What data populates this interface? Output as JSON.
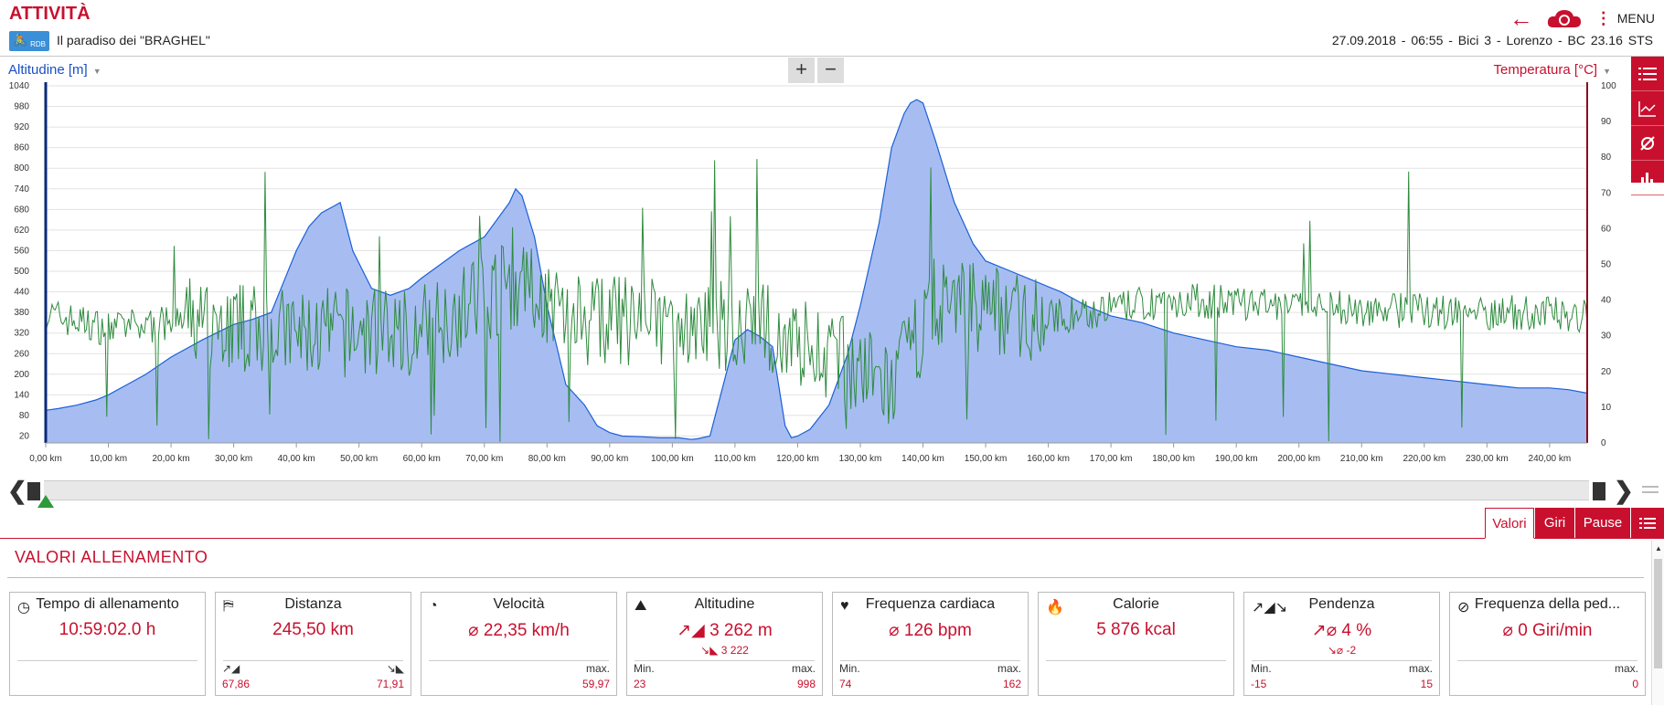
{
  "header": {
    "title": "ATTIVITÀ",
    "logo_text": "RDB",
    "subtitle": "Il paradiso dei \"BRAGHEL\"",
    "menu_label": "MENU",
    "meta": "27.09.2018 - 06:55 - Bici 3 - Lorenzo - BC 23.16 STS"
  },
  "chart_controls": {
    "left_axis_label": "Altitudine [m]",
    "right_axis_label": "Temperatura [°C]",
    "zoom_in": "+",
    "zoom_out": "−"
  },
  "chart_data": {
    "type": "area",
    "x_unit": "km",
    "xlim": [
      0,
      246
    ],
    "x_ticks": [
      "0,00 km",
      "10,00 km",
      "20,00 km",
      "30,00 km",
      "40,00 km",
      "50,00 km",
      "60,00 km",
      "70,00 km",
      "80,00 km",
      "90,00 km",
      "100,00 km",
      "110,00 km",
      "120,00 km",
      "130,00 km",
      "140,00 km",
      "150,00 km",
      "160,00 km",
      "170,00 km",
      "180,00 km",
      "190,00 km",
      "200,00 km",
      "210,00 km",
      "220,00 km",
      "230,00 km",
      "240,00 km"
    ],
    "y_left": {
      "label": "Altitudine [m]",
      "ylim": [
        0,
        1040
      ],
      "ticks": [
        1040,
        980,
        920,
        860,
        800,
        740,
        680,
        620,
        560,
        500,
        440,
        380,
        320,
        260,
        200,
        140,
        80,
        20
      ]
    },
    "y_right": {
      "label": "Temperatura [°C]",
      "ylim": [
        0,
        100
      ],
      "ticks": [
        100,
        90,
        80,
        70,
        60,
        50,
        40,
        30,
        20,
        10,
        0
      ]
    },
    "series": [
      {
        "name": "Altitudine [m]",
        "color": "#1b5fd8",
        "fill": "#a7bdf2",
        "x": [
          0,
          2,
          5,
          8,
          10,
          13,
          16,
          20,
          25,
          30,
          33,
          36,
          38,
          40,
          42,
          44,
          46,
          47,
          49,
          52,
          55,
          58,
          60,
          63,
          66,
          70,
          72,
          74,
          75,
          76,
          78,
          80,
          83,
          86,
          88,
          90,
          92,
          95,
          98,
          101,
          103,
          104,
          106,
          108,
          110,
          112,
          114,
          116,
          118,
          119,
          120,
          122,
          125,
          128,
          130,
          133,
          135,
          137,
          138,
          139,
          140,
          142,
          145,
          148,
          150,
          154,
          158,
          162,
          166,
          170,
          175,
          180,
          185,
          190,
          195,
          200,
          205,
          210,
          215,
          220,
          225,
          230,
          235,
          240,
          243,
          246
        ],
        "y": [
          95,
          100,
          110,
          125,
          140,
          170,
          200,
          250,
          300,
          345,
          360,
          380,
          470,
          560,
          630,
          670,
          690,
          700,
          560,
          450,
          430,
          450,
          480,
          520,
          560,
          600,
          650,
          700,
          740,
          720,
          600,
          400,
          170,
          110,
          50,
          30,
          20,
          18,
          15,
          15,
          10,
          12,
          20,
          160,
          300,
          330,
          310,
          280,
          50,
          15,
          20,
          40,
          110,
          260,
          400,
          640,
          860,
          960,
          990,
          1000,
          990,
          880,
          700,
          580,
          530,
          500,
          470,
          440,
          400,
          370,
          350,
          320,
          300,
          280,
          270,
          250,
          230,
          210,
          200,
          190,
          180,
          170,
          160,
          160,
          155,
          145
        ]
      },
      {
        "name": "Temperatura [°C]",
        "color": "#2e8b3e"
      }
    ]
  },
  "scrollbar": {
    "left_arrow": "❮",
    "right_arrow": "❯"
  },
  "tabs": [
    "Valori",
    "Giri",
    "Pause"
  ],
  "section_title": "VALORI ALLENAMENTO",
  "cards": [
    {
      "icon": "◷",
      "title": "Tempo di allenamento",
      "value": "10:59:02.0 h",
      "sub": "",
      "minl": "",
      "maxl": "",
      "minv": "",
      "maxv": ""
    },
    {
      "icon": "⛿",
      "title": "Distanza",
      "value": "245,50 km",
      "sub": "",
      "minl": "↗◢",
      "maxl": "↘◣",
      "minv": "67,86",
      "maxv": "71,91"
    },
    {
      "icon": "◔",
      "title": "Velocità",
      "value": "⌀ 22,35 km/h",
      "sub": "",
      "minl": "",
      "maxl": "max.",
      "minv": "",
      "maxv": "59,97"
    },
    {
      "icon": "⛰",
      "title": "Altitudine",
      "value": "↗◢ 3 262 m",
      "sub": "↘◣ 3 222",
      "minl": "Min.",
      "maxl": "max.",
      "minv": "23",
      "maxv": "998"
    },
    {
      "icon": "♥",
      "title": "Frequenza cardiaca",
      "value": "⌀ 126 bpm",
      "sub": "",
      "minl": "Min.",
      "maxl": "max.",
      "minv": "74",
      "maxv": "162"
    },
    {
      "icon": "🔥",
      "title": "Calorie",
      "value": "5 876 kcal",
      "sub": "",
      "minl": "",
      "maxl": "",
      "minv": "",
      "maxv": ""
    },
    {
      "icon": "↗◢↘",
      "title": "Pendenza",
      "value": "↗⌀ 4 %",
      "sub": "↘⌀ -2",
      "minl": "Min.",
      "maxl": "max.",
      "minv": "-15",
      "maxv": "15"
    },
    {
      "icon": "⊘",
      "title": "Frequenza della ped...",
      "value": "⌀ 0 Giri/min",
      "sub": "",
      "minl": "",
      "maxl": "max.",
      "minv": "",
      "maxv": "0"
    }
  ]
}
